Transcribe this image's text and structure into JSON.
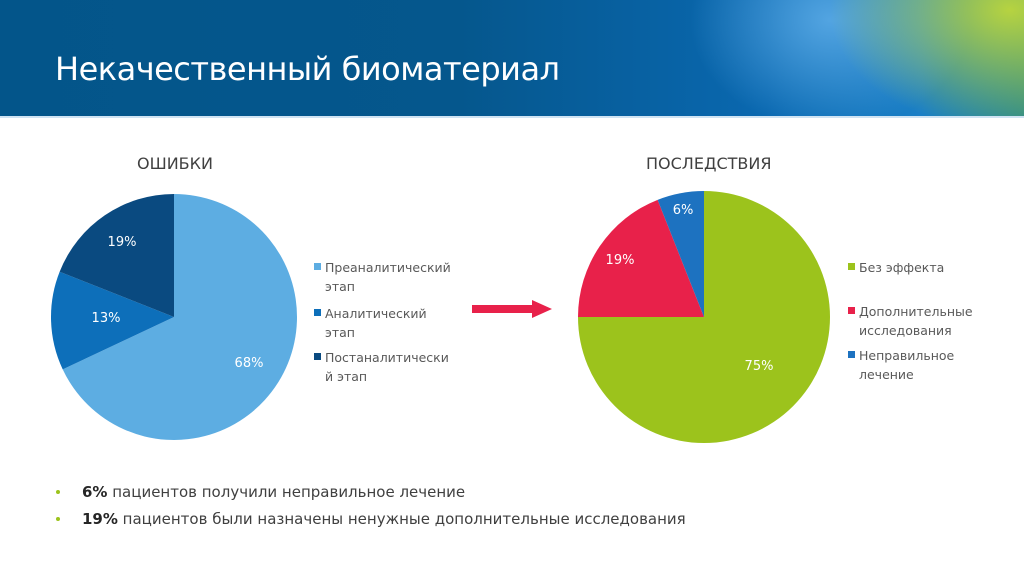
{
  "header": {
    "title": "Некачественный биоматериал"
  },
  "colors": {
    "header_blue": "#05578d",
    "arrow": "#e8214a"
  },
  "chart_data": [
    {
      "type": "pie",
      "title": "ОШИБКИ",
      "categories": [
        "Преаналитический этап",
        "Аналитический этап",
        "Постаналитический этап"
      ],
      "values": [
        68,
        13,
        19
      ],
      "labels": [
        "68%",
        "13%",
        "19%"
      ],
      "colors": [
        "#5dade2",
        "#0d6fba",
        "#0a4a80"
      ],
      "legend_lines": [
        [
          "Преаналитический",
          "этап"
        ],
        [
          "Аналитический",
          "этап"
        ],
        [
          "Постаналитически",
          "й этап"
        ]
      ],
      "legend_position": "right"
    },
    {
      "type": "pie",
      "title": "ПОСЛЕДСТВИЯ",
      "categories": [
        "Без эффекта",
        "Дополнительные исследования",
        "Неправильное лечение"
      ],
      "values": [
        75,
        19,
        6
      ],
      "labels": [
        "75%",
        "19%",
        "6%"
      ],
      "colors": [
        "#9cc31c",
        "#e8214a",
        "#1d72c0"
      ],
      "legend_lines": [
        [
          "Без эффекта"
        ],
        [
          "Дополнительные",
          "исследования"
        ],
        [
          "Неправильное",
          "лечение"
        ]
      ],
      "legend_position": "right"
    }
  ],
  "bullets": [
    {
      "bold": "6%",
      "text": " пациентов получили неправильное лечение"
    },
    {
      "bold": "19%",
      "text": " пациентов были назначены ненужные дополнительные исследования"
    }
  ]
}
